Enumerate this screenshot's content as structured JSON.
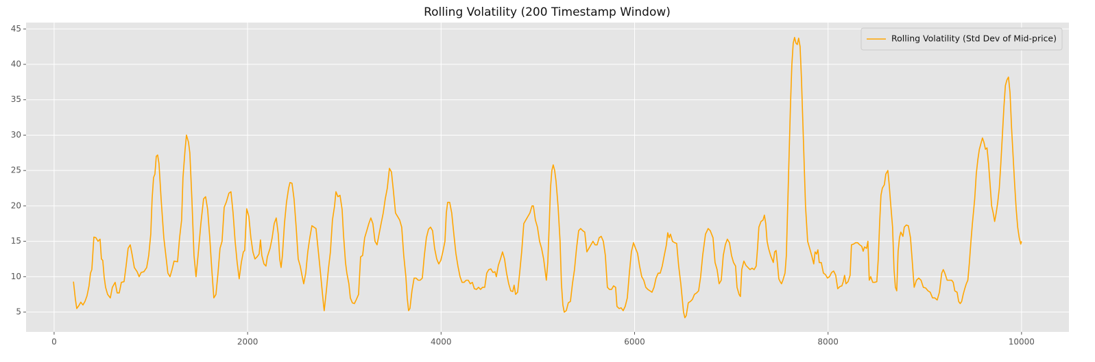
{
  "chart_data": {
    "type": "line",
    "title": "Rolling Volatility (200 Timestamp Window)",
    "x": [
      200,
      220,
      234,
      255,
      276,
      298,
      319,
      340,
      361,
      376,
      390,
      411,
      432,
      454,
      475,
      489,
      503,
      517,
      532,
      553,
      581,
      602,
      631,
      652,
      673,
      695,
      723,
      744,
      765,
      787,
      808,
      829,
      858,
      879,
      900,
      928,
      957,
      978,
      999,
      1013,
      1028,
      1042,
      1056,
      1070,
      1084,
      1106,
      1134,
      1155,
      1176,
      1198,
      1219,
      1240,
      1276,
      1297,
      1318,
      1332,
      1354,
      1368,
      1389,
      1403,
      1424,
      1446,
      1467,
      1488,
      1517,
      1545,
      1566,
      1587,
      1609,
      1630,
      1651,
      1673,
      1694,
      1715,
      1736,
      1758,
      1779,
      1807,
      1828,
      1850,
      1871,
      1892,
      1913,
      1935,
      1956,
      1970,
      1991,
      2013,
      2034,
      2055,
      2076,
      2098,
      2119,
      2133,
      2147,
      2169,
      2190,
      2204,
      2232,
      2254,
      2275,
      2296,
      2317,
      2332,
      2346,
      2360,
      2381,
      2402,
      2424,
      2438,
      2459,
      2480,
      2502,
      2523,
      2544,
      2565,
      2580,
      2601,
      2622,
      2643,
      2665,
      2686,
      2707,
      2728,
      2750,
      2771,
      2785,
      2792,
      2814,
      2835,
      2856,
      2877,
      2899,
      2913,
      2934,
      2955,
      2977,
      2991,
      3012,
      3026,
      3047,
      3062,
      3083,
      3104,
      3125,
      3147,
      3168,
      3189,
      3210,
      3232,
      3253,
      3274,
      3295,
      3317,
      3338,
      3359,
      3380,
      3402,
      3423,
      3444,
      3466,
      3487,
      3508,
      3529,
      3551,
      3572,
      3593,
      3614,
      3636,
      3650,
      3664,
      3678,
      3699,
      3721,
      3742,
      3763,
      3784,
      3806,
      3827,
      3848,
      3870,
      3891,
      3912,
      3933,
      3955,
      3976,
      3997,
      4018,
      4040,
      4054,
      4068,
      4089,
      4110,
      4132,
      4153,
      4174,
      4196,
      4217,
      4238,
      4259,
      4281,
      4302,
      4323,
      4344,
      4366,
      4387,
      4408,
      4429,
      4451,
      4472,
      4493,
      4514,
      4536,
      4557,
      4571,
      4592,
      4614,
      4635,
      4656,
      4677,
      4699,
      4720,
      4741,
      4755,
      4770,
      4791,
      4812,
      4833,
      4855,
      4876,
      4897,
      4918,
      4940,
      4954,
      4975,
      4996,
      5018,
      5039,
      5060,
      5074,
      5088,
      5103,
      5117,
      5131,
      5145,
      5159,
      5174,
      5188,
      5209,
      5230,
      5244,
      5259,
      5273,
      5294,
      5315,
      5337,
      5358,
      5379,
      5400,
      5422,
      5443,
      5464,
      5485,
      5507,
      5528,
      5549,
      5570,
      5592,
      5613,
      5634,
      5655,
      5677,
      5698,
      5719,
      5740,
      5762,
      5783,
      5804,
      5818,
      5840,
      5861,
      5882,
      5903,
      5925,
      5946,
      5967,
      5989,
      6010,
      6031,
      6052,
      6074,
      6095,
      6116,
      6137,
      6159,
      6180,
      6201,
      6222,
      6244,
      6265,
      6286,
      6307,
      6329,
      6343,
      6357,
      6371,
      6392,
      6414,
      6435,
      6456,
      6478,
      6492,
      6506,
      6520,
      6534,
      6555,
      6577,
      6598,
      6619,
      6641,
      6662,
      6683,
      6704,
      6733,
      6761,
      6782,
      6811,
      6832,
      6853,
      6874,
      6896,
      6917,
      6938,
      6959,
      6981,
      7002,
      7023,
      7044,
      7059,
      7080,
      7094,
      7108,
      7130,
      7151,
      7172,
      7193,
      7215,
      7236,
      7257,
      7271,
      7285,
      7307,
      7328,
      7342,
      7356,
      7370,
      7385,
      7406,
      7420,
      7434,
      7448,
      7463,
      7477,
      7491,
      7505,
      7519,
      7533,
      7555,
      7569,
      7583,
      7597,
      7611,
      7626,
      7640,
      7654,
      7668,
      7682,
      7696,
      7711,
      7725,
      7739,
      7753,
      7767,
      7789,
      7810,
      7831,
      7852,
      7866,
      7881,
      7895,
      7909,
      7930,
      7952,
      7973,
      7994,
      8015,
      8037,
      8058,
      8079,
      8100,
      8122,
      8143,
      8157,
      8171,
      8185,
      8207,
      8228,
      8242,
      8263,
      8285,
      8306,
      8327,
      8348,
      8363,
      8377,
      8398,
      8412,
      8426,
      8441,
      8462,
      8483,
      8504,
      8519,
      8533,
      8547,
      8561,
      8582,
      8597,
      8618,
      8632,
      8646,
      8667,
      8682,
      8696,
      8710,
      8724,
      8738,
      8752,
      8774,
      8788,
      8809,
      8830,
      8852,
      8866,
      8890,
      8914,
      8937,
      8961,
      8985,
      9009,
      9033,
      9056,
      9080,
      9104,
      9128,
      9151,
      9175,
      9191,
      9207,
      9231,
      9254,
      9278,
      9294,
      9310,
      9334,
      9350,
      9366,
      9381,
      9397,
      9413,
      9429,
      9445,
      9461,
      9477,
      9492,
      9516,
      9532,
      9548,
      9564,
      9580,
      9596,
      9611,
      9627,
      9643,
      9659,
      9675,
      9691,
      9707,
      9722,
      9738,
      9754,
      9770,
      9786,
      9802,
      9818,
      9833,
      9849,
      9865,
      9881,
      9897,
      9913,
      9929,
      9945,
      9960,
      9976,
      9992,
      10000
    ],
    "series": [
      {
        "name": "Rolling Volatility (Std Dev of Mid-price)",
        "color": "#ffa500",
        "values": [
          9.3,
          6.8,
          5.5,
          5.9,
          6.4,
          6.0,
          6.5,
          7.3,
          8.7,
          10.5,
          11,
          15.6,
          15.5,
          15.0,
          15.3,
          12.5,
          12.3,
          10,
          8.5,
          7.5,
          7.0,
          8.5,
          9.2,
          7.7,
          7.7,
          9.2,
          9.3,
          11.5,
          14,
          14.5,
          13,
          11.3,
          10.7,
          10.0,
          10.6,
          10.7,
          11.3,
          13,
          16,
          21,
          24,
          24.5,
          27,
          27.2,
          26,
          21,
          15.5,
          13,
          10.5,
          10.0,
          11,
          12.2,
          12.1,
          15.5,
          18,
          24,
          28,
          30,
          29,
          27.5,
          21,
          13,
          10,
          13,
          17.5,
          21,
          21.3,
          19.5,
          15.5,
          11,
          7.0,
          7.5,
          10.5,
          14,
          15,
          19.8,
          20.5,
          21.8,
          22,
          19,
          15,
          12,
          9.7,
          12,
          13.5,
          13.7,
          19.6,
          18.5,
          15.5,
          13.5,
          12.5,
          12.8,
          13.2,
          15.2,
          13,
          11.8,
          11.5,
          12.8,
          14,
          15.5,
          17.5,
          18.3,
          16,
          12.5,
          11.3,
          13,
          17.5,
          20.5,
          22.5,
          23.3,
          23.2,
          21,
          17,
          12.5,
          11.5,
          10,
          9,
          10.5,
          13.5,
          15.5,
          17.2,
          17,
          16.8,
          14,
          11,
          8,
          6,
          5.2,
          8,
          11,
          13.5,
          18,
          20,
          22,
          21.3,
          21.5,
          19.5,
          16,
          12,
          10.5,
          9,
          7,
          6.3,
          6.2,
          6.8,
          7.5,
          12.8,
          13,
          15.5,
          16.5,
          17.5,
          18.3,
          17.5,
          15,
          14.5,
          16,
          17.5,
          19,
          21,
          22.5,
          25.3,
          24.8,
          22,
          19,
          18.5,
          18,
          17,
          13,
          10,
          7,
          5.2,
          5.5,
          8,
          9.8,
          9.8,
          9.5,
          9.5,
          9.8,
          13,
          15.5,
          16.7,
          17,
          16.5,
          14,
          12.5,
          11.8,
          12.3,
          13.5,
          15,
          19,
          20.5,
          20.5,
          19,
          16,
          13.3,
          11.5,
          10,
          9.2,
          9.2,
          9.5,
          9.5,
          9.0,
          9.2,
          8.3,
          8.2,
          8.5,
          8.2,
          8.5,
          8.5,
          10.5,
          11,
          11.1,
          10.6,
          10.7,
          10.0,
          11.6,
          12.5,
          13.5,
          12.5,
          10.5,
          9,
          8.0,
          7.9,
          8.8,
          7.5,
          7.8,
          10.5,
          13.5,
          17.5,
          18,
          18.5,
          19,
          20,
          20,
          18,
          17,
          15,
          14,
          12.5,
          11,
          9.5,
          12,
          17,
          22.5,
          25,
          25.8,
          25,
          23.5,
          20,
          15,
          9,
          6,
          5,
          5.2,
          6.3,
          6.5,
          9,
          11,
          14,
          16.5,
          16.8,
          16.5,
          16.3,
          13.5,
          14,
          14.5,
          15,
          14.5,
          14.5,
          15.5,
          15.7,
          15,
          13,
          8.5,
          8.2,
          8.2,
          8.7,
          8.5,
          5.8,
          5.5,
          5.6,
          5.2,
          5.8,
          7.0,
          10.5,
          13.5,
          14.8,
          14.0,
          13.3,
          11.5,
          10.0,
          9.5,
          8.5,
          8.2,
          8.0,
          7.8,
          8.5,
          9.8,
          10.5,
          10.5,
          11.5,
          13,
          14.5,
          16.2,
          15.5,
          16,
          15,
          14.8,
          14.7,
          11.5,
          9,
          7,
          5.0,
          4.2,
          4.5,
          6.3,
          6.5,
          6.8,
          7.5,
          7.7,
          8,
          10,
          13,
          16,
          16.8,
          16.5,
          15.5,
          12,
          11,
          9,
          9.5,
          13,
          14.5,
          15.3,
          14.8,
          13,
          12,
          11.5,
          8.5,
          7.5,
          7.2,
          11,
          12.2,
          11.6,
          11.3,
          11,
          11.2,
          11,
          11.5,
          14,
          17,
          17.8,
          18,
          18.7,
          17.5,
          15,
          14,
          13,
          12.5,
          12,
          13.5,
          13.7,
          11.8,
          9.7,
          9.3,
          9,
          9.5,
          10.5,
          13,
          20,
          27,
          34,
          40,
          43,
          43.8,
          43,
          42.8,
          43.7,
          42.5,
          38,
          32,
          26,
          20,
          15,
          14,
          13,
          11.8,
          13.5,
          13.2,
          13.8,
          12,
          12,
          10.5,
          10.3,
          9.8,
          10,
          10.6,
          10.8,
          10.2,
          8.3,
          8.6,
          8.7,
          9.3,
          10.2,
          9.0,
          9.3,
          10.2,
          14.5,
          14.6,
          14.8,
          14.8,
          14.5,
          14.3,
          13.6,
          14.2,
          14.0,
          15,
          9.5,
          10,
          9.2,
          9.2,
          9.3,
          12.5,
          17.5,
          21.5,
          22.5,
          23,
          24.5,
          25,
          23,
          20.5,
          17,
          11,
          8.5,
          8,
          13.5,
          15.5,
          16.3,
          15.7,
          17,
          17.3,
          17.2,
          15.5,
          13,
          8.5,
          9.5,
          9.8,
          9.5,
          8.5,
          8.4,
          8.0,
          7.8,
          7.0,
          7.0,
          6.7,
          7.8,
          10.5,
          11,
          10.5,
          9.5,
          9.5,
          9.5,
          9.2,
          8.0,
          7.8,
          6.5,
          6.2,
          6.5,
          7.5,
          8.3,
          9,
          9.5,
          12,
          15,
          17.5,
          21,
          24.5,
          26.5,
          28,
          28.8,
          29.6,
          29,
          28,
          28.2,
          26,
          23,
          20,
          19,
          17.8,
          19,
          20.5,
          22.5,
          26,
          30,
          34,
          37,
          37.8,
          38.2,
          36,
          31,
          27,
          23,
          19.5,
          17,
          15.5,
          14.6,
          15
        ]
      }
    ],
    "xlim": [
      -290,
      10490
    ],
    "xticks": [
      0,
      2000,
      4000,
      6000,
      8000,
      10000
    ],
    "ylim": [
      2.2,
      45.9
    ],
    "yticks": [
      5,
      10,
      15,
      20,
      25,
      30,
      35,
      40,
      45
    ],
    "grid": true,
    "legend": "upper right"
  }
}
